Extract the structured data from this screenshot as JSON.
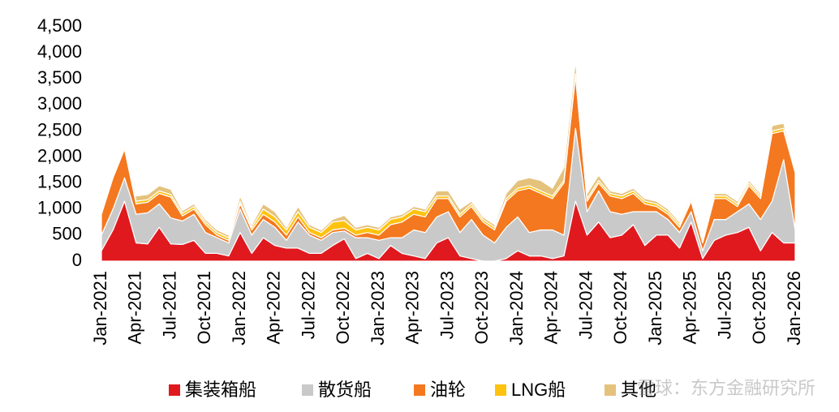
{
  "chart_data": {
    "type": "stacked-area",
    "categories": [
      "Jan-2021",
      null,
      null,
      "Apr-2021",
      null,
      null,
      "Jul-2021",
      null,
      null,
      "Oct-2021",
      null,
      null,
      "Jan-2022",
      null,
      null,
      "Apr-2022",
      null,
      null,
      "Jul-2022",
      null,
      null,
      "Oct-2022",
      null,
      null,
      "Jan-2023",
      null,
      null,
      "Apr-2023",
      null,
      null,
      "Jul-2023",
      null,
      null,
      "Oct-2023",
      null,
      null,
      "Jan-2024",
      null,
      null,
      "Apr-2024",
      null,
      null,
      "Jul-2024",
      null,
      null,
      "Oct-2024",
      null,
      null,
      "Jan-2025",
      null,
      null,
      "Apr-2025",
      null,
      null,
      "Jul-2025",
      null,
      null,
      "Oct-2025",
      null,
      null,
      "Jan-2026"
    ],
    "series": [
      {
        "name": "集装箱船",
        "color": "#e0191f",
        "values": [
          200,
          600,
          1150,
          350,
          330,
          650,
          330,
          320,
          400,
          150,
          150,
          100,
          550,
          150,
          450,
          300,
          250,
          250,
          150,
          150,
          300,
          430,
          50,
          150,
          50,
          300,
          150,
          100,
          50,
          350,
          450,
          100,
          50,
          0,
          0,
          50,
          200,
          100,
          100,
          50,
          100,
          1150,
          500,
          750,
          450,
          500,
          700,
          300,
          500,
          500,
          250,
          750,
          50,
          400,
          500,
          550,
          650,
          200,
          550,
          350,
          350
        ]
      },
      {
        "name": "散货船",
        "color": "#c9c9c9",
        "values": [
          300,
          400,
          450,
          550,
          600,
          450,
          500,
          450,
          500,
          400,
          300,
          250,
          450,
          350,
          350,
          350,
          150,
          500,
          350,
          250,
          250,
          150,
          400,
          300,
          350,
          150,
          300,
          500,
          500,
          500,
          500,
          450,
          750,
          500,
          350,
          600,
          650,
          450,
          500,
          550,
          400,
          1400,
          450,
          600,
          500,
          400,
          250,
          650,
          450,
          300,
          300,
          200,
          150,
          400,
          300,
          400,
          450,
          600,
          600,
          1600,
          250
        ]
      },
      {
        "name": "油轮",
        "color": "#f4781f",
        "values": [
          400,
          600,
          550,
          200,
          200,
          200,
          400,
          100,
          100,
          150,
          50,
          50,
          100,
          100,
          100,
          100,
          100,
          100,
          50,
          50,
          50,
          50,
          50,
          100,
          100,
          250,
          300,
          300,
          300,
          350,
          250,
          300,
          250,
          250,
          250,
          500,
          500,
          850,
          700,
          600,
          1000,
          1000,
          200,
          150,
          300,
          300,
          350,
          150,
          100,
          100,
          100,
          200,
          150,
          400,
          400,
          100,
          350,
          400,
          1300,
          550,
          1100
        ]
      },
      {
        "name": "LNG船",
        "color": "#ffc20e",
        "values": [
          0,
          50,
          50,
          50,
          50,
          50,
          50,
          50,
          50,
          50,
          50,
          50,
          50,
          50,
          100,
          100,
          100,
          100,
          100,
          100,
          150,
          150,
          100,
          100,
          100,
          100,
          100,
          100,
          100,
          50,
          50,
          50,
          50,
          50,
          50,
          50,
          50,
          50,
          50,
          50,
          50,
          50,
          50,
          50,
          50,
          50,
          50,
          50,
          50,
          50,
          50,
          50,
          50,
          50,
          50,
          50,
          50,
          50,
          50,
          50,
          50
        ]
      },
      {
        "name": "其他",
        "color": "#e5c27c",
        "values": [
          50,
          50,
          50,
          100,
          100,
          100,
          100,
          50,
          50,
          50,
          50,
          50,
          100,
          50,
          100,
          100,
          50,
          100,
          50,
          50,
          50,
          100,
          50,
          50,
          50,
          50,
          50,
          50,
          50,
          100,
          100,
          100,
          50,
          50,
          50,
          100,
          150,
          150,
          200,
          150,
          250,
          250,
          100,
          100,
          50,
          50,
          50,
          50,
          50,
          50,
          50,
          50,
          50,
          50,
          50,
          50,
          50,
          50,
          100,
          100,
          50
        ]
      }
    ],
    "ylim": [
      0,
      4500
    ],
    "yticks": [
      0,
      500,
      {
        "value": 1000,
        "label": "1,000"
      },
      {
        "value": 1500,
        "label": "1,500"
      },
      {
        "value": 2000,
        "label": "2,000"
      },
      {
        "value": 2500,
        "label": "2,500"
      },
      {
        "value": 3000,
        "label": "3,000"
      },
      {
        "value": 3500,
        "label": "3,500"
      },
      {
        "value": 4000,
        "label": "4,000"
      },
      {
        "value": 4500,
        "label": "4,500"
      }
    ],
    "grid": false,
    "legend": "bottom",
    "watermark": "雪球：东方金融研究所"
  }
}
